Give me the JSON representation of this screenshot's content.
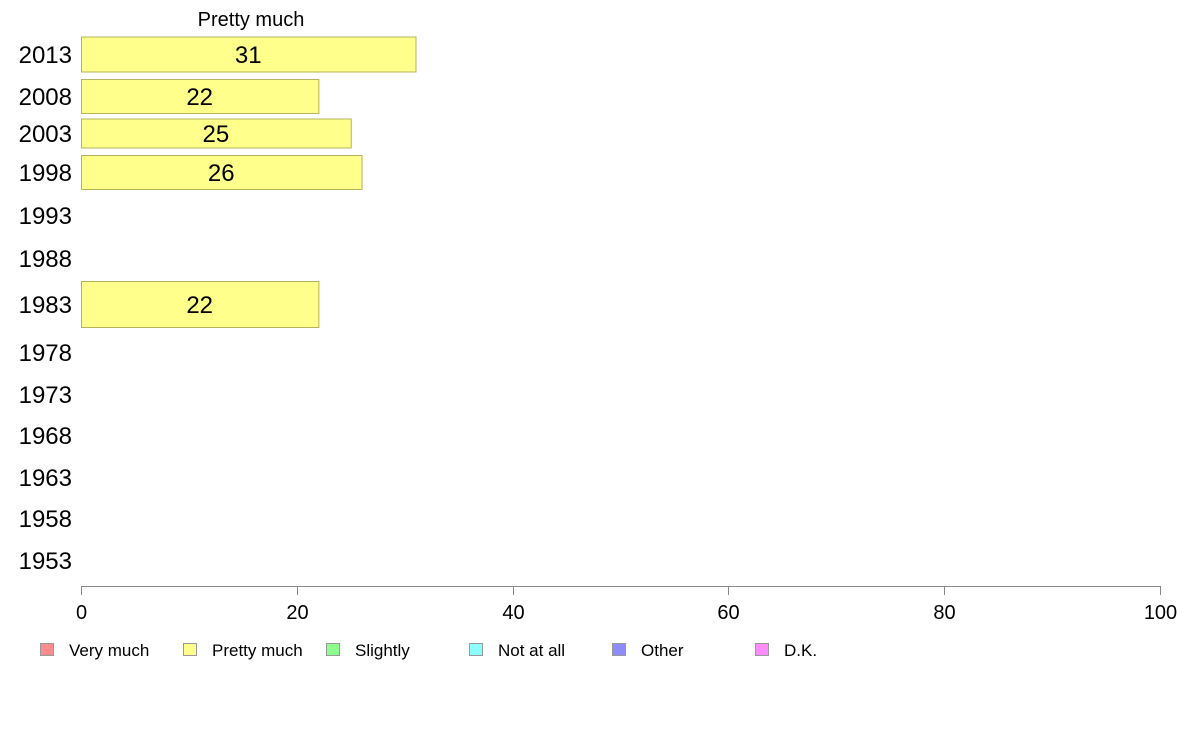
{
  "chart_data": {
    "type": "bar",
    "orientation": "horizontal",
    "series_title": "Pretty much",
    "categories": [
      "2013",
      "2008",
      "2003",
      "1998",
      "1993",
      "1988",
      "1983",
      "1978",
      "1973",
      "1968",
      "1963",
      "1958",
      "1953"
    ],
    "values": [
      31,
      22,
      25,
      26,
      null,
      null,
      22,
      null,
      null,
      null,
      null,
      null,
      null
    ],
    "labels": [
      "31",
      "22",
      "25",
      "26",
      "",
      "",
      "22",
      "",
      "",
      "",
      "",
      "",
      ""
    ],
    "xlim": [
      0,
      100
    ],
    "xticks": [
      0,
      20,
      40,
      60,
      80,
      100
    ],
    "xtick_labels": [
      "0",
      "20",
      "40",
      "60",
      "80",
      "100"
    ],
    "grid": false,
    "legend_position": "bottom",
    "legend": [
      {
        "label": "Very much",
        "color": "#ff8c8c"
      },
      {
        "label": "Pretty much",
        "color": "#ffff8c"
      },
      {
        "label": "Slightly",
        "color": "#8cff8c"
      },
      {
        "label": "Not at all",
        "color": "#8cffff"
      },
      {
        "label": "Other",
        "color": "#8c8cff"
      },
      {
        "label": "D.K.",
        "color": "#ff8cff"
      }
    ],
    "bar_color": "#ffff8c",
    "bar_stroke": "#b4b45a"
  }
}
